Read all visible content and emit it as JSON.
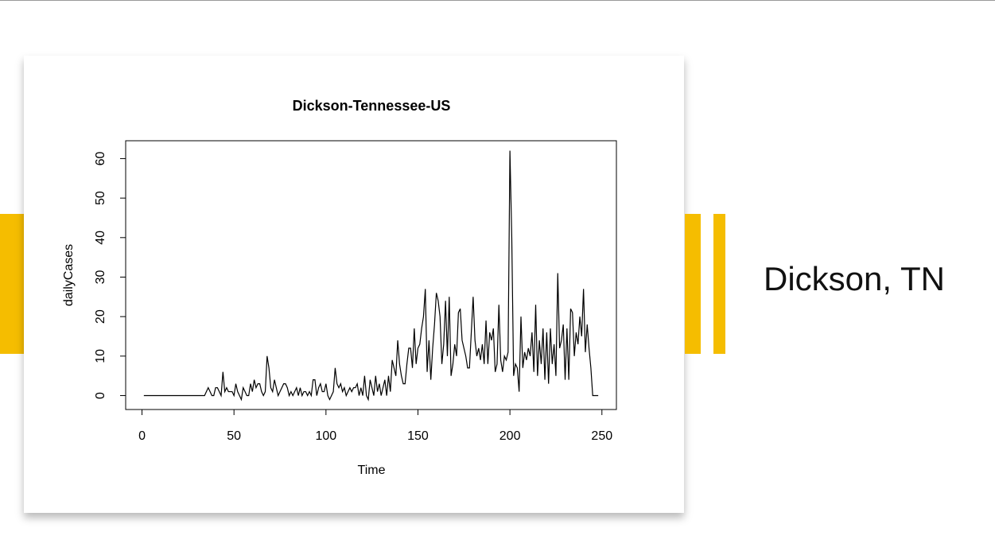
{
  "slide_title": "Dickson, TN",
  "chart_data": {
    "type": "line",
    "title": "Dickson-Tennessee-US",
    "x_label": "Time",
    "y_label": "dailyCases",
    "color": "#000000",
    "xlim": [
      -8.88,
      257.88
    ],
    "xticks": [
      0,
      50,
      100,
      150,
      200,
      250
    ],
    "ylim": [
      -3.52,
      64.52
    ],
    "yticks": [
      0,
      10,
      20,
      30,
      40,
      50,
      60
    ],
    "x": [
      1,
      2,
      3,
      4,
      5,
      6,
      7,
      8,
      9,
      10,
      11,
      12,
      13,
      14,
      15,
      16,
      17,
      18,
      19,
      20,
      21,
      22,
      23,
      24,
      25,
      26,
      27,
      28,
      29,
      30,
      31,
      32,
      33,
      34,
      35,
      36,
      37,
      38,
      39,
      40,
      41,
      42,
      43,
      44,
      45,
      46,
      47,
      48,
      49,
      50,
      51,
      52,
      53,
      54,
      55,
      56,
      57,
      58,
      59,
      60,
      61,
      62,
      63,
      64,
      65,
      66,
      67,
      68,
      69,
      70,
      71,
      72,
      73,
      74,
      75,
      76,
      77,
      78,
      79,
      80,
      81,
      82,
      83,
      84,
      85,
      86,
      87,
      88,
      89,
      90,
      91,
      92,
      93,
      94,
      95,
      96,
      97,
      98,
      99,
      100,
      101,
      102,
      103,
      104,
      105,
      106,
      107,
      108,
      109,
      110,
      111,
      112,
      113,
      114,
      115,
      116,
      117,
      118,
      119,
      120,
      121,
      122,
      123,
      124,
      125,
      126,
      127,
      128,
      129,
      130,
      131,
      132,
      133,
      134,
      135,
      136,
      137,
      138,
      139,
      140,
      141,
      142,
      143,
      144,
      145,
      146,
      147,
      148,
      149,
      150,
      151,
      152,
      153,
      154,
      155,
      156,
      157,
      158,
      159,
      160,
      161,
      162,
      163,
      164,
      165,
      166,
      167,
      168,
      169,
      170,
      171,
      172,
      173,
      174,
      175,
      176,
      177,
      178,
      179,
      180,
      181,
      182,
      183,
      184,
      185,
      186,
      187,
      188,
      189,
      190,
      191,
      192,
      193,
      194,
      195,
      196,
      197,
      198,
      199,
      200,
      201,
      202,
      203,
      204,
      205,
      206,
      207,
      208,
      209,
      210,
      211,
      212,
      213,
      214,
      215,
      216,
      217,
      218,
      219,
      220,
      221,
      222,
      223,
      224,
      225,
      226,
      227,
      228,
      229,
      230,
      231,
      232,
      233,
      234,
      235,
      236,
      237,
      238,
      239,
      240,
      241,
      242,
      243,
      244,
      245,
      246,
      247,
      248
    ],
    "values": [
      0,
      0,
      0,
      0,
      0,
      0,
      0,
      0,
      0,
      0,
      0,
      0,
      0,
      0,
      0,
      0,
      0,
      0,
      0,
      0,
      0,
      0,
      0,
      0,
      0,
      0,
      0,
      0,
      0,
      0,
      0,
      0,
      0,
      0,
      1,
      2,
      1,
      0,
      0,
      2,
      2,
      1,
      0,
      6,
      1,
      2,
      1,
      1,
      1,
      0,
      3,
      1,
      0,
      -1,
      2,
      1,
      0,
      0,
      3,
      1,
      4,
      2,
      3,
      3,
      1,
      0,
      1,
      10,
      7,
      2,
      1,
      4,
      2,
      0,
      1,
      2,
      3,
      3,
      2,
      0,
      1,
      0,
      1,
      2,
      0,
      2,
      0,
      1,
      1,
      0,
      1,
      0,
      4,
      4,
      0,
      2,
      3,
      1,
      1,
      3,
      0,
      -1,
      0,
      1,
      7,
      3,
      2,
      3,
      1,
      2,
      0,
      1,
      2,
      1,
      2,
      2,
      3,
      0,
      2,
      0,
      5,
      0,
      -1,
      4,
      2,
      0,
      5,
      1,
      3,
      0,
      2,
      4,
      0,
      5,
      1,
      9,
      7,
      5,
      14,
      8,
      5,
      3,
      3,
      8,
      12,
      12,
      7,
      17,
      8,
      12,
      13,
      17,
      20,
      27,
      6,
      14,
      4,
      12,
      18,
      26,
      24,
      20,
      8,
      13,
      24,
      10,
      25,
      5,
      8,
      13,
      10,
      21,
      22,
      14,
      12,
      10,
      7,
      7,
      16,
      25,
      14,
      10,
      12,
      9,
      13,
      8,
      19,
      8,
      16,
      14,
      17,
      6,
      8,
      23,
      9,
      6,
      10,
      9,
      11,
      62,
      40,
      5,
      8,
      7,
      1,
      20,
      7,
      11,
      9,
      12,
      10,
      16,
      6,
      23,
      5,
      14,
      8,
      17,
      4,
      16,
      3,
      17,
      8,
      13,
      5,
      31,
      12,
      14,
      18,
      4,
      17,
      4,
      22,
      21,
      10,
      16,
      13,
      20,
      15,
      27,
      11,
      18,
      12,
      7,
      0,
      0,
      0,
      0
    ]
  }
}
